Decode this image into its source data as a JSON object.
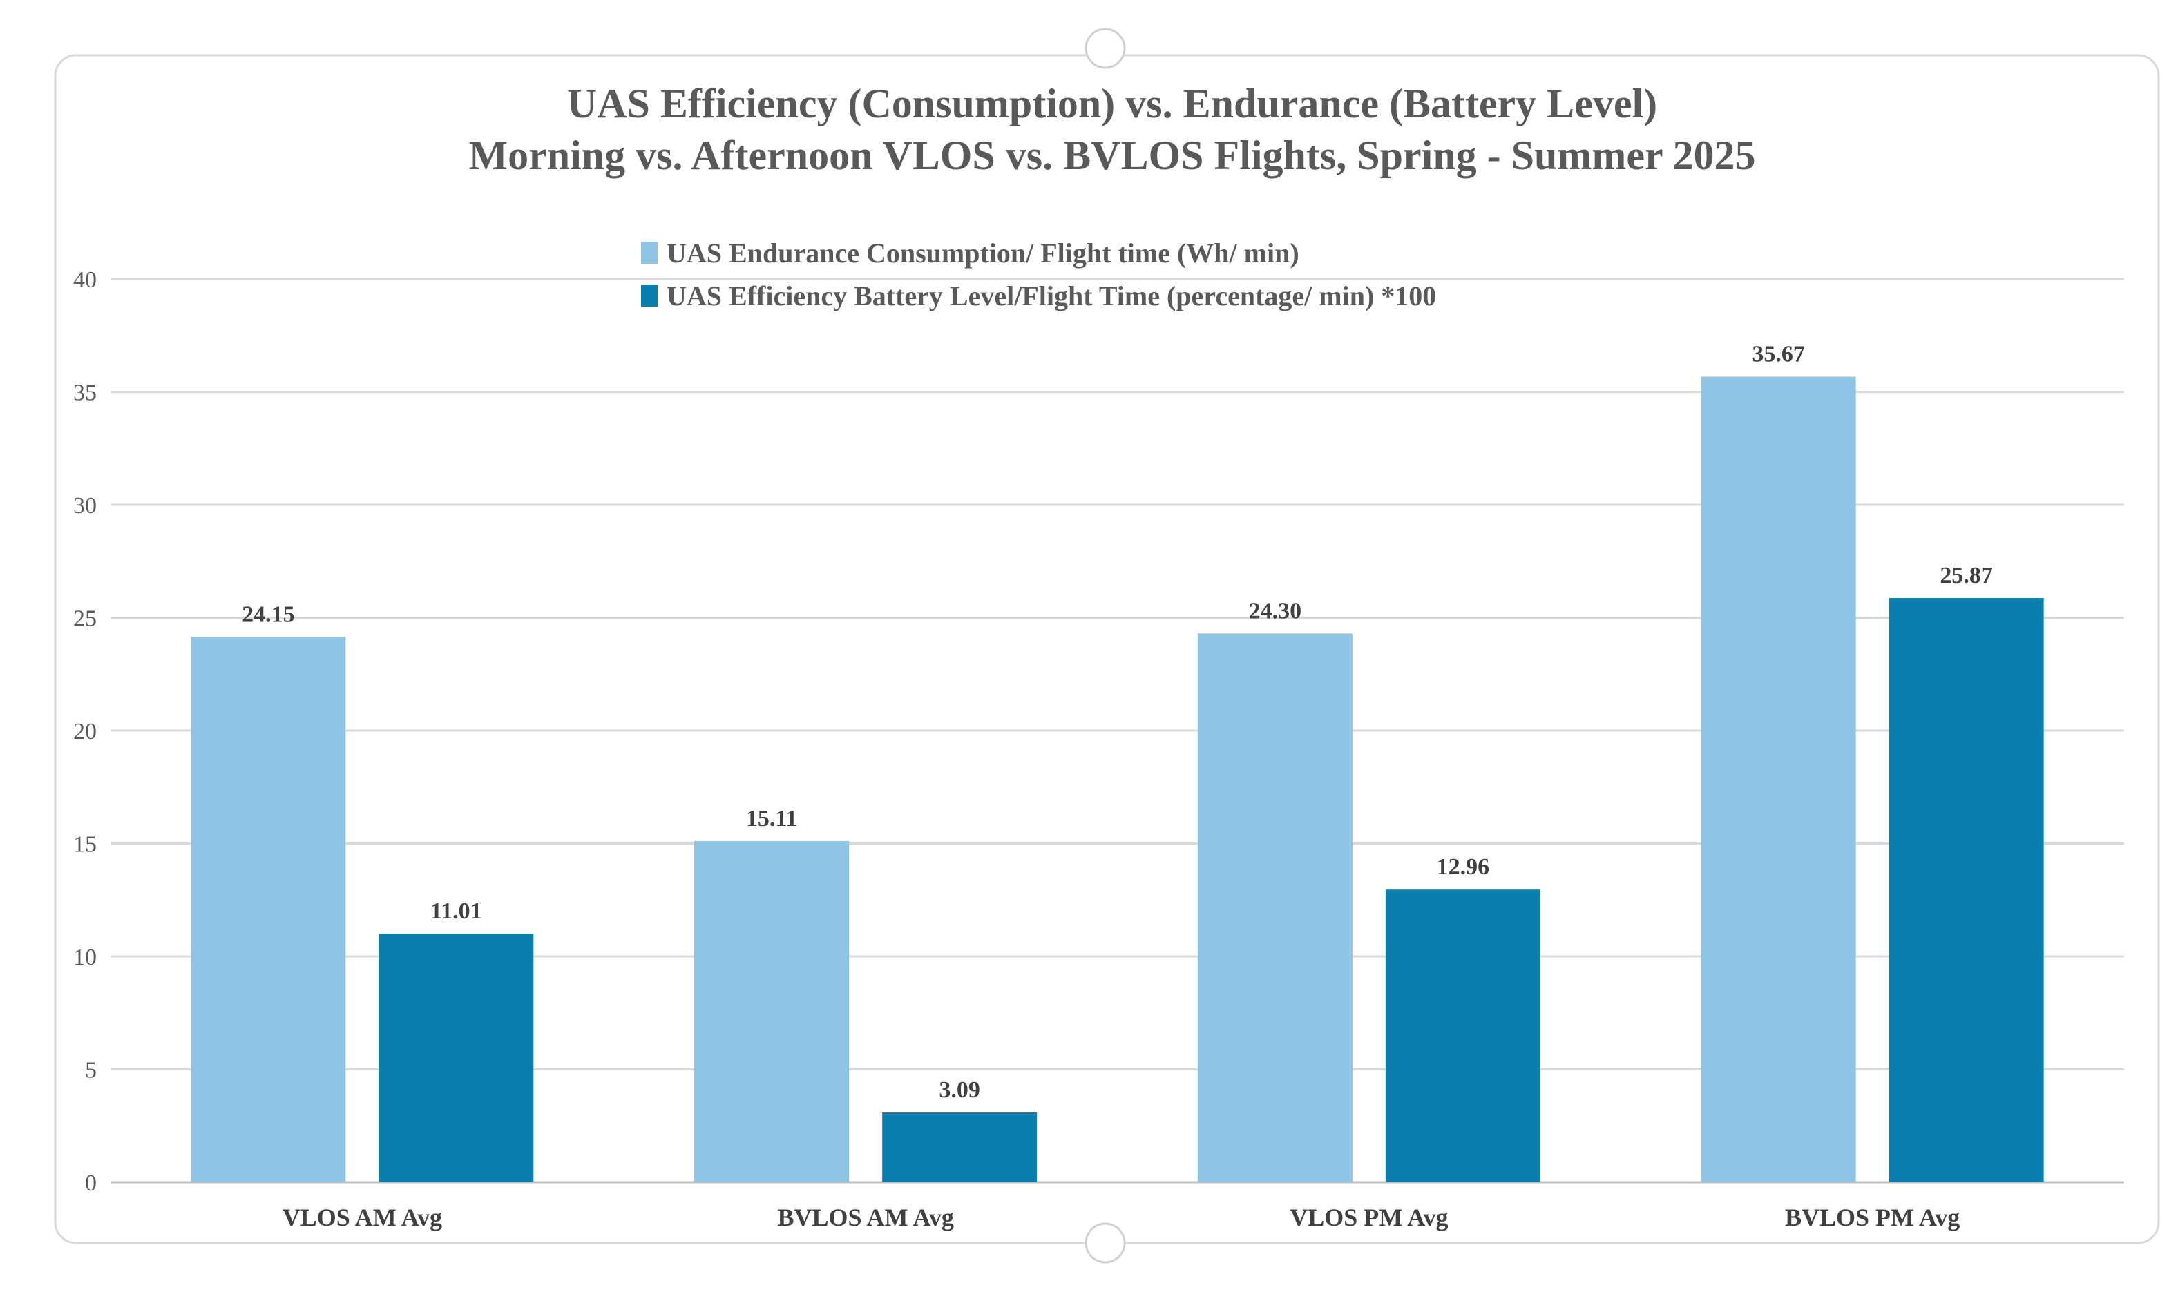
{
  "chart_data": {
    "type": "bar",
    "title": [
      "UAS Efficiency (Consumption) vs. Endurance (Battery Level)",
      "Morning vs. Afternoon VLOS vs. BVLOS Flights, Spring - Summer 2025"
    ],
    "categories": [
      "VLOS AM Avg",
      "BVLOS AM Avg",
      "VLOS PM Avg",
      "BVLOS PM Avg"
    ],
    "series": [
      {
        "name": "UAS Endurance Consumption/ Flight time (Wh/ min)",
        "values": [
          24.15,
          15.11,
          24.3,
          35.67
        ],
        "labels": [
          "24.15",
          "15.11",
          "24.30",
          "35.67"
        ],
        "color": "#8fc4e4"
      },
      {
        "name": "UAS Efficiency Battery Level/Flight Time (percentage/ min) *100",
        "values": [
          11.01,
          3.09,
          12.96,
          25.87
        ],
        "labels": [
          "11.01",
          "3.09",
          "12.96",
          "25.87"
        ],
        "color": "#0a7fae"
      }
    ],
    "yticks": [
      "0",
      "5",
      "10",
      "15",
      "20",
      "25",
      "30",
      "35",
      "40"
    ],
    "ylim": [
      0,
      40
    ],
    "xlabel": "",
    "ylabel": "",
    "grid": true,
    "legend_position": "top"
  }
}
